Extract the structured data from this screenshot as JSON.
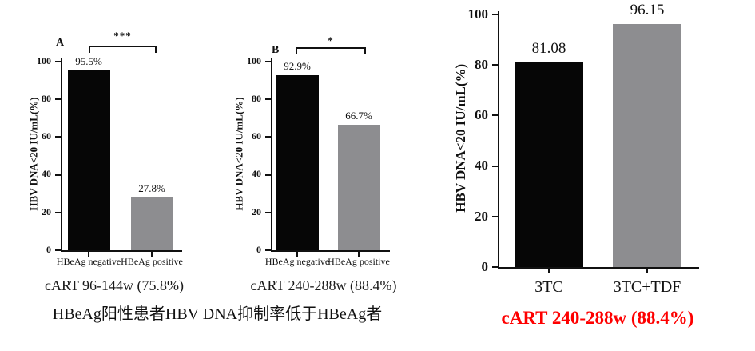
{
  "colors": {
    "axis": "#111111",
    "black_bar": "#060606",
    "gray_bar": "#8d8d90",
    "caption_red": "#fe0000",
    "text": "#111111"
  },
  "captions": {
    "bottom_left": "HBeAg阳性患者HBV DNA抑制率低于HBeAg者"
  },
  "chart_data": [
    {
      "id": "A",
      "type": "bar",
      "panel_label": "A",
      "title": "",
      "ylabel": "HBV DNA<20 IU/mL(%)",
      "xlabel": "",
      "ylim": [
        0,
        100
      ],
      "yticks": [
        0,
        20,
        40,
        60,
        80,
        100
      ],
      "categories": [
        "HBeAg negative",
        "HBeAg positive"
      ],
      "values": [
        95.5,
        27.8
      ],
      "value_labels": [
        "95.5%",
        "27.8%"
      ],
      "bar_colors": [
        "#060606",
        "#8d8d90"
      ],
      "significance": "***",
      "caption": "cART 96-144w (75.8%)",
      "caption_color": "#1a1a1a",
      "grid": false,
      "legend": "none"
    },
    {
      "id": "B",
      "type": "bar",
      "panel_label": "B",
      "title": "",
      "ylabel": "HBV DNA<20 IU/mL(%)",
      "xlabel": "",
      "ylim": [
        0,
        100
      ],
      "yticks": [
        0,
        20,
        40,
        60,
        80,
        100
      ],
      "categories": [
        "HBeAg negative",
        "HBeAg positive"
      ],
      "values": [
        92.9,
        66.7
      ],
      "value_labels": [
        "92.9%",
        "66.7%"
      ],
      "bar_colors": [
        "#060606",
        "#8d8d90"
      ],
      "significance": "*",
      "caption": "cART 240-288w (88.4%)",
      "caption_color": "#1a1a1a",
      "grid": false,
      "legend": "none"
    },
    {
      "id": "C",
      "type": "bar",
      "panel_label": "",
      "title": "",
      "ylabel": "HBV DNA<20 IU/mL(%)",
      "xlabel": "",
      "ylim": [
        0,
        100
      ],
      "yticks": [
        0,
        20,
        40,
        60,
        80,
        100
      ],
      "categories": [
        "3TC",
        "3TC+TDF"
      ],
      "values": [
        81.08,
        96.15
      ],
      "value_labels": [
        "81.08",
        "96.15"
      ],
      "bar_colors": [
        "#060606",
        "#8d8d90"
      ],
      "significance": null,
      "caption": "cART 240-288w (88.4%)",
      "caption_color": "#fe0000",
      "grid": false,
      "legend": "none"
    }
  ]
}
